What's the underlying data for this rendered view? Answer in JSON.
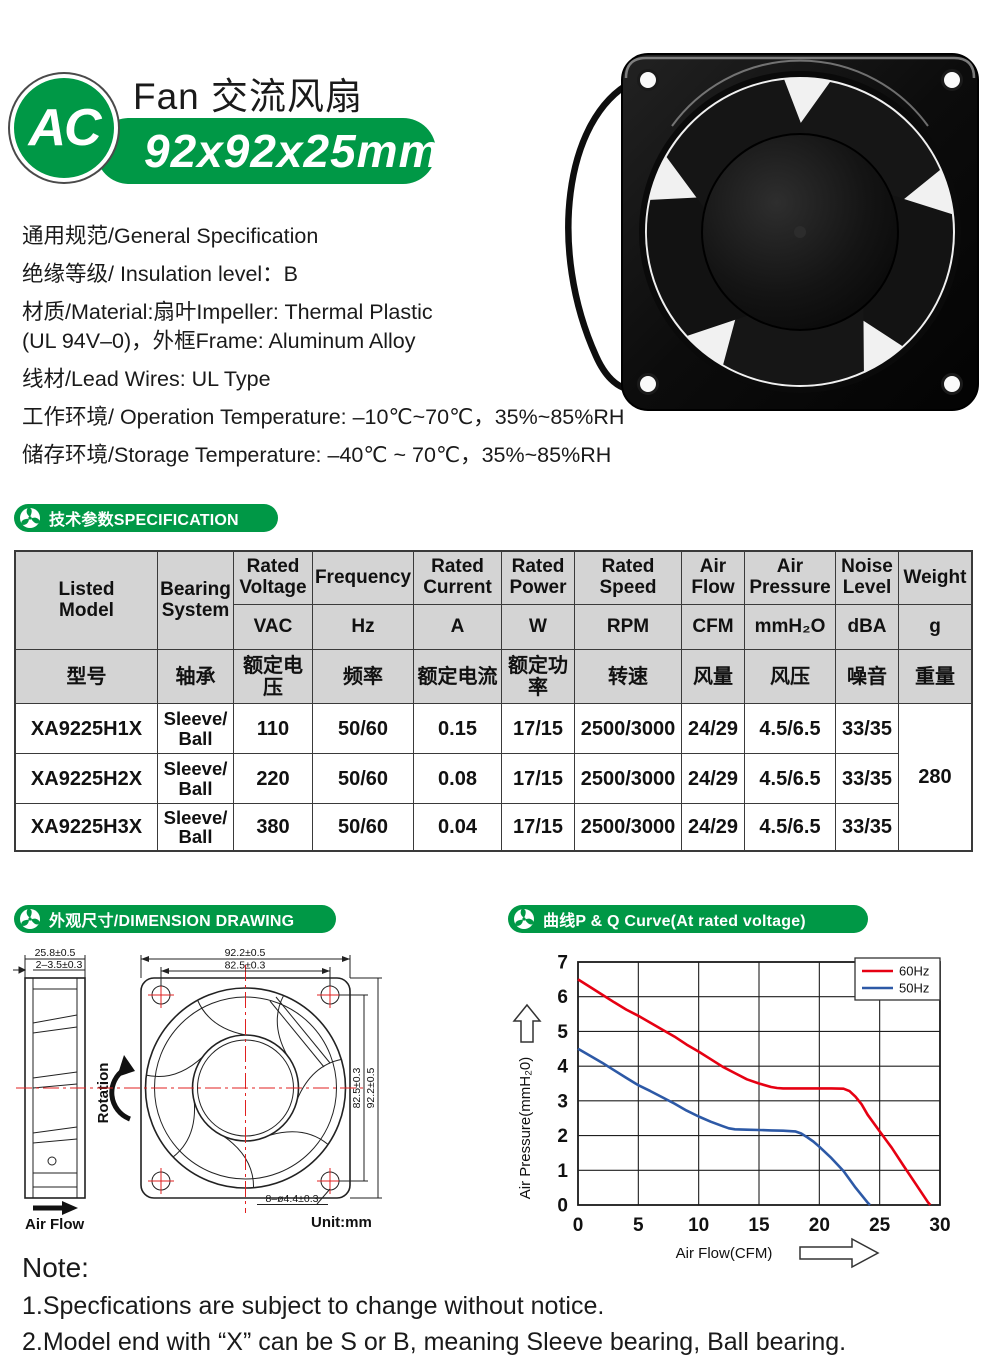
{
  "brand": {
    "ac_label": "AC",
    "title": "Fan 交流风扇",
    "size": "92x92x25mm"
  },
  "colors": {
    "green": "#009846",
    "table_header_bg": "#d4d4d4",
    "red_60hz": "#e60012",
    "blue_50hz": "#2d59a6",
    "drawing_red": "#e02020"
  },
  "general": {
    "lines": [
      "通用规范/General Specification",
      "绝缘等级/ Insulation level：B",
      "材质/Material:扇叶Impeller: Thermal Plastic",
      "(UL 94V–0)，外框Frame: Aluminum Alloy",
      "线材/Lead Wires: UL Type",
      "工作环境/ Operation Temperature: –10℃~70℃，35%~85%RH",
      "储存环境/Storage Temperature: –40℃ ~ 70℃，35%~85%RH"
    ]
  },
  "spec": {
    "banner": "技术参数SPECIFICATION",
    "header": {
      "model_en": "Listed Model",
      "model_cn": "型号",
      "bearing_en": "Bearing System",
      "bearing_cn": "轴承",
      "cols": [
        {
          "en": "Rated Voltage",
          "unit": "VAC",
          "cn": "额定电压"
        },
        {
          "en": "Frequency",
          "unit": "Hz",
          "cn": "频率"
        },
        {
          "en": "Rated Current",
          "unit": "A",
          "cn": "额定电流"
        },
        {
          "en": "Rated Power",
          "unit": "W",
          "cn": "额定功率"
        },
        {
          "en": "Rated Speed",
          "unit": "RPM",
          "cn": "转速"
        },
        {
          "en": "Air Flow",
          "unit": "CFM",
          "cn": "风量"
        },
        {
          "en": "Air Pressure",
          "unit": "mmH₂O",
          "cn": "风压"
        },
        {
          "en": "Noise Level",
          "unit": "dBA",
          "cn": "噪音"
        },
        {
          "en": "Weight",
          "unit": "g",
          "cn": "重量"
        }
      ]
    },
    "rows": [
      {
        "model": "XA9225H1X",
        "bearing": "Sleeve/ Ball",
        "voltage": "110",
        "frequency": "50/60",
        "current": "0.15",
        "power": "17/15",
        "speed": "2500/3000",
        "flow": "24/29",
        "pressure": "4.5/6.5",
        "noise": "33/35"
      },
      {
        "model": "XA9225H2X",
        "bearing": "Sleeve/ Ball",
        "voltage": "220",
        "frequency": "50/60",
        "current": "0.08",
        "power": "17/15",
        "speed": "2500/3000",
        "flow": "24/29",
        "pressure": "4.5/6.5",
        "noise": "33/35"
      },
      {
        "model": "XA9225H3X",
        "bearing": "Sleeve/ Ball",
        "voltage": "380",
        "frequency": "50/60",
        "current": "0.04",
        "power": "17/15",
        "speed": "2500/3000",
        "flow": "24/29",
        "pressure": "4.5/6.5",
        "noise": "33/35"
      }
    ],
    "weight_all": "280"
  },
  "dimension": {
    "banner": "外观尺寸/DIMENSION DRAWING",
    "side_width": "25.8±0.5",
    "side_flange": "2–3.5±0.3",
    "front_width_outer": "92.2±0.5",
    "front_width_inner": "82.5±0.3",
    "front_height_inner": "82.5±0.3",
    "front_height_outer": "92.2±0.5",
    "holes": "8–ø4.4±0.3",
    "unit": "Unit:mm",
    "rotation": "Rotation",
    "airflow": "Air Flow"
  },
  "pq": {
    "banner": "曲线P & Q Curve(At rated voltage)"
  },
  "chart_data": {
    "type": "line",
    "title": "曲线P & Q Curve(At rated voltage)",
    "xlabel": "Air Flow(CFM)",
    "ylabel": "Air Pressure(mmH₂0)",
    "xlim": [
      0,
      30
    ],
    "ylim": [
      0,
      7
    ],
    "xticks": [
      0,
      5,
      10,
      15,
      20,
      25,
      30
    ],
    "yticks": [
      0,
      1,
      2,
      3,
      4,
      5,
      6,
      7
    ],
    "grid": true,
    "legend_position": "top-right",
    "series": [
      {
        "name": "60Hz",
        "color": "#e60012",
        "points": [
          [
            0,
            6.5
          ],
          [
            1,
            6.28
          ],
          [
            2,
            6.06
          ],
          [
            3,
            5.84
          ],
          [
            4,
            5.63
          ],
          [
            5,
            5.45
          ],
          [
            6,
            5.25
          ],
          [
            7,
            5.05
          ],
          [
            8,
            4.85
          ],
          [
            9,
            4.62
          ],
          [
            10,
            4.42
          ],
          [
            11,
            4.2
          ],
          [
            12,
            3.98
          ],
          [
            13,
            3.8
          ],
          [
            14,
            3.62
          ],
          [
            15,
            3.5
          ],
          [
            16,
            3.4
          ],
          [
            16.5,
            3.37
          ],
          [
            17,
            3.36
          ],
          [
            19,
            3.36
          ],
          [
            21,
            3.36
          ],
          [
            22,
            3.35
          ],
          [
            22.5,
            3.28
          ],
          [
            23,
            3.12
          ],
          [
            23.5,
            2.9
          ],
          [
            24,
            2.6
          ],
          [
            25,
            2.12
          ],
          [
            26,
            1.65
          ],
          [
            27,
            1.12
          ],
          [
            28,
            0.6
          ],
          [
            29,
            0.08
          ],
          [
            29.2,
            0
          ]
        ]
      },
      {
        "name": "50Hz",
        "color": "#2d59a6",
        "points": [
          [
            0,
            4.5
          ],
          [
            1,
            4.3
          ],
          [
            2,
            4.1
          ],
          [
            3,
            3.88
          ],
          [
            4,
            3.66
          ],
          [
            5,
            3.45
          ],
          [
            6,
            3.28
          ],
          [
            7,
            3.1
          ],
          [
            8,
            2.92
          ],
          [
            9,
            2.72
          ],
          [
            10,
            2.55
          ],
          [
            11,
            2.4
          ],
          [
            12,
            2.27
          ],
          [
            12.5,
            2.21
          ],
          [
            13,
            2.18
          ],
          [
            14,
            2.17
          ],
          [
            15,
            2.16
          ],
          [
            16,
            2.15
          ],
          [
            17,
            2.14
          ],
          [
            18,
            2.12
          ],
          [
            18.5,
            2.06
          ],
          [
            19,
            1.95
          ],
          [
            19.5,
            1.83
          ],
          [
            20,
            1.68
          ],
          [
            21,
            1.35
          ],
          [
            22,
            0.98
          ],
          [
            23,
            0.5
          ],
          [
            24,
            0.07
          ],
          [
            24.2,
            0
          ]
        ]
      }
    ]
  },
  "note": {
    "title": "Note:",
    "lines": [
      "1.Specfications are subject to change without notice.",
      "2.Model end with “X” can be S or B, meaning Sleeve bearing, Ball bearing."
    ]
  }
}
